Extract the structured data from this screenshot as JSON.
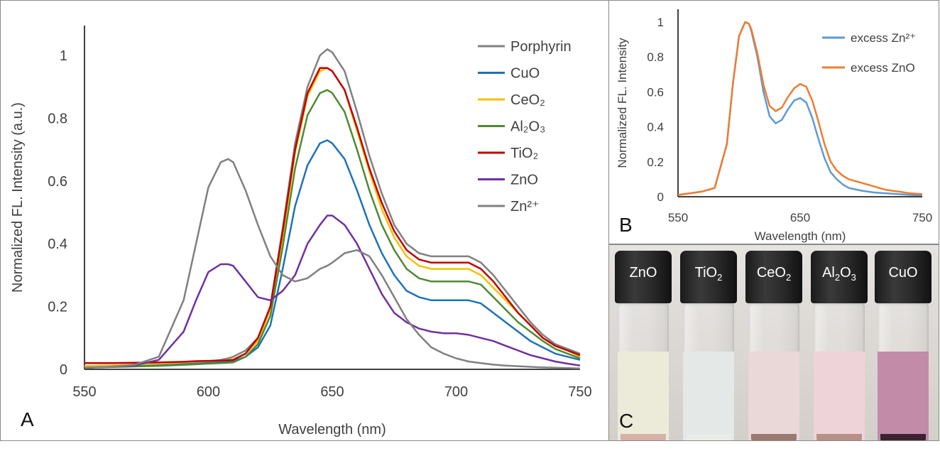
{
  "panel_labels": {
    "a": "A",
    "b": "B",
    "c": "C"
  },
  "chart_data": [
    {
      "type": "line",
      "xlabel": "Wavelength (nm)",
      "ylabel": "Normalized FL. Intensity (a.u.)",
      "xlim": [
        550,
        750
      ],
      "ylim": [
        0,
        1.05
      ],
      "xticks": [
        "550",
        "600",
        "650",
        "700",
        "750"
      ],
      "yticks": [
        "0",
        "0.2",
        "0.4",
        "0.6",
        "0.8",
        "1"
      ],
      "grid": false,
      "legend_position": "top-right",
      "x": [
        550,
        560,
        570,
        580,
        590,
        595,
        600,
        605,
        608,
        610,
        615,
        620,
        625,
        630,
        635,
        640,
        645,
        648,
        650,
        655,
        660,
        665,
        670,
        675,
        680,
        685,
        690,
        695,
        700,
        705,
        710,
        715,
        720,
        725,
        730,
        735,
        740,
        745,
        750
      ],
      "series": [
        {
          "name": "Porphyrin",
          "color": "#808080",
          "values": [
            0.01,
            0.012,
            0.015,
            0.018,
            0.022,
            0.024,
            0.026,
            0.03,
            0.035,
            0.04,
            0.06,
            0.1,
            0.2,
            0.45,
            0.72,
            0.9,
            1.0,
            1.02,
            1.01,
            0.95,
            0.82,
            0.68,
            0.56,
            0.46,
            0.4,
            0.37,
            0.36,
            0.36,
            0.36,
            0.36,
            0.34,
            0.3,
            0.25,
            0.2,
            0.15,
            0.11,
            0.08,
            0.065,
            0.05
          ]
        },
        {
          "name": "CuO",
          "color": "#1f72b8",
          "values": [
            0.008,
            0.01,
            0.012,
            0.015,
            0.018,
            0.02,
            0.022,
            0.024,
            0.025,
            0.026,
            0.04,
            0.07,
            0.14,
            0.32,
            0.52,
            0.65,
            0.72,
            0.73,
            0.72,
            0.67,
            0.57,
            0.46,
            0.37,
            0.3,
            0.25,
            0.23,
            0.22,
            0.22,
            0.22,
            0.22,
            0.21,
            0.18,
            0.15,
            0.12,
            0.09,
            0.07,
            0.05,
            0.04,
            0.03
          ]
        },
        {
          "name": "CeO₂",
          "color": "#f5c000",
          "values": [
            0.01,
            0.012,
            0.015,
            0.018,
            0.022,
            0.024,
            0.026,
            0.028,
            0.03,
            0.032,
            0.05,
            0.09,
            0.19,
            0.42,
            0.69,
            0.87,
            0.95,
            0.96,
            0.95,
            0.89,
            0.76,
            0.63,
            0.51,
            0.42,
            0.36,
            0.33,
            0.32,
            0.32,
            0.32,
            0.32,
            0.3,
            0.26,
            0.22,
            0.18,
            0.14,
            0.1,
            0.075,
            0.06,
            0.04
          ]
        },
        {
          "name": "Al₂O₃",
          "color": "#4e8a34",
          "values": [
            0.005,
            0.007,
            0.009,
            0.011,
            0.014,
            0.016,
            0.018,
            0.02,
            0.021,
            0.022,
            0.04,
            0.08,
            0.17,
            0.39,
            0.64,
            0.81,
            0.88,
            0.89,
            0.88,
            0.82,
            0.7,
            0.57,
            0.46,
            0.38,
            0.32,
            0.29,
            0.28,
            0.28,
            0.28,
            0.28,
            0.27,
            0.23,
            0.19,
            0.15,
            0.12,
            0.09,
            0.065,
            0.05,
            0.035
          ]
        },
        {
          "name": "TiO₂",
          "color": "#c00000",
          "values": [
            0.02,
            0.02,
            0.021,
            0.022,
            0.024,
            0.026,
            0.027,
            0.028,
            0.029,
            0.03,
            0.05,
            0.1,
            0.2,
            0.44,
            0.7,
            0.88,
            0.96,
            0.96,
            0.95,
            0.89,
            0.77,
            0.64,
            0.53,
            0.44,
            0.38,
            0.35,
            0.34,
            0.34,
            0.34,
            0.34,
            0.32,
            0.28,
            0.23,
            0.18,
            0.14,
            0.1,
            0.075,
            0.06,
            0.045
          ]
        },
        {
          "name": "ZnO",
          "color": "#7030a0",
          "values": [
            0.005,
            0.008,
            0.012,
            0.03,
            0.12,
            0.22,
            0.31,
            0.335,
            0.335,
            0.33,
            0.28,
            0.23,
            0.22,
            0.25,
            0.3,
            0.4,
            0.46,
            0.49,
            0.49,
            0.46,
            0.4,
            0.32,
            0.24,
            0.18,
            0.15,
            0.13,
            0.12,
            0.115,
            0.115,
            0.11,
            0.1,
            0.09,
            0.075,
            0.06,
            0.045,
            0.035,
            0.025,
            0.018,
            0.012
          ]
        },
        {
          "name": "Zn²⁺",
          "color": "#808080",
          "values": [
            0.005,
            0.008,
            0.014,
            0.04,
            0.22,
            0.4,
            0.58,
            0.66,
            0.67,
            0.66,
            0.57,
            0.46,
            0.36,
            0.3,
            0.28,
            0.29,
            0.32,
            0.33,
            0.34,
            0.37,
            0.38,
            0.36,
            0.3,
            0.23,
            0.16,
            0.11,
            0.07,
            0.05,
            0.035,
            0.025,
            0.02,
            0.015,
            0.012,
            0.01,
            0.008,
            0.006,
            0.005,
            0.004,
            0.003
          ]
        }
      ]
    },
    {
      "type": "line",
      "xlabel": "Wavelength (nm)",
      "ylabel": "Normalized FL. Intensity",
      "xlim": [
        550,
        750
      ],
      "ylim": [
        0,
        1
      ],
      "xticks": [
        "550",
        "650",
        "750"
      ],
      "yticks": [
        "0",
        "0.2",
        "0.4",
        "0.6",
        "0.8",
        "1"
      ],
      "grid": false,
      "legend_position": "top-right",
      "x": [
        550,
        560,
        570,
        580,
        590,
        595,
        600,
        605,
        608,
        610,
        615,
        620,
        625,
        630,
        635,
        640,
        645,
        650,
        655,
        660,
        665,
        670,
        675,
        680,
        685,
        690,
        700,
        710,
        720,
        730,
        740,
        750
      ],
      "series": [
        {
          "name": "excess Zn²⁺",
          "color": "#5b9bd5",
          "values": [
            0.01,
            0.02,
            0.03,
            0.05,
            0.3,
            0.65,
            0.92,
            1.0,
            0.99,
            0.95,
            0.8,
            0.6,
            0.46,
            0.42,
            0.44,
            0.5,
            0.55,
            0.565,
            0.54,
            0.45,
            0.33,
            0.22,
            0.14,
            0.1,
            0.07,
            0.05,
            0.035,
            0.025,
            0.02,
            0.015,
            0.01,
            0.008
          ]
        },
        {
          "name": "excess ZnO",
          "color": "#ed7d31",
          "values": [
            0.01,
            0.02,
            0.03,
            0.05,
            0.3,
            0.65,
            0.92,
            1.0,
            0.99,
            0.96,
            0.82,
            0.64,
            0.52,
            0.49,
            0.51,
            0.57,
            0.62,
            0.645,
            0.63,
            0.55,
            0.43,
            0.3,
            0.2,
            0.15,
            0.12,
            0.1,
            0.08,
            0.06,
            0.04,
            0.03,
            0.02,
            0.015
          ]
        }
      ]
    }
  ],
  "photo": {
    "vials": [
      {
        "label_main": "ZnO",
        "label_sub": "",
        "liquid": "#ecebd9",
        "sediment": "#d6b1a6"
      },
      {
        "label_main": "TiO",
        "label_sub": "2",
        "liquid": "#e4e8e6",
        "sediment": "#e9ebe6"
      },
      {
        "label_main": "CeO",
        "label_sub": "2",
        "liquid": "#ead8d9",
        "sediment": "#9a7a70"
      },
      {
        "label_main": "Al",
        "label_sub": "2",
        "label_main2": "O",
        "label_sub2": "3",
        "liquid": "#eed4d8",
        "sediment": "#b79088"
      },
      {
        "label_main": "CuO",
        "label_sub": "",
        "liquid": "#c28ca8",
        "sediment": "#3a2230"
      }
    ]
  }
}
